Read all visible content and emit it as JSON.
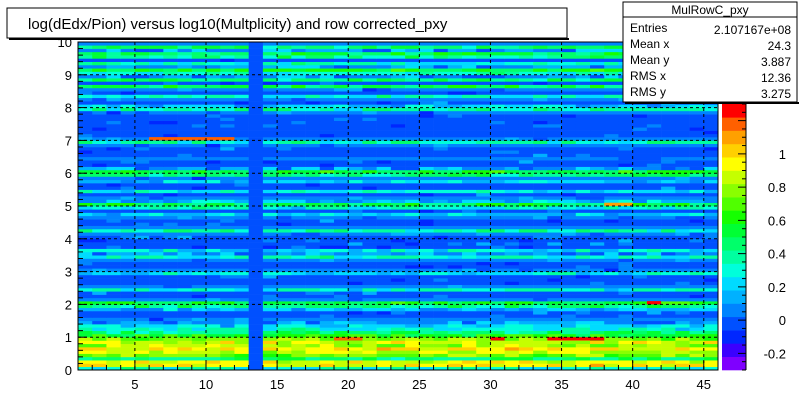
{
  "chart_data": {
    "type": "heatmap",
    "title": "log(dEdx/Pion) versus log10(Multplicity) and row corrected_pxy",
    "xlabel": "",
    "ylabel": "",
    "xlim": [
      1,
      46
    ],
    "ylim": [
      0,
      10
    ],
    "x_ticks": [
      "5",
      "10",
      "15",
      "20",
      "25",
      "30",
      "35",
      "40",
      "45"
    ],
    "y_ticks": [
      "0",
      "1",
      "2",
      "3",
      "4",
      "5",
      "6",
      "7",
      "8",
      "9",
      "10"
    ],
    "grid": true,
    "legend": "none",
    "colorbar": {
      "range": [
        -0.3,
        1.3
      ],
      "ticks": [
        "-0.2",
        "0",
        "0.2",
        "0.4",
        "0.6",
        "0.8",
        "1"
      ]
    },
    "stats": {
      "name": "MulRowC_pxy",
      "rows": [
        {
          "label": "Entries",
          "value": "2.107167e+08"
        },
        {
          "label": "Mean x",
          "value": "24.3"
        },
        {
          "label": "Mean y",
          "value": "3.887"
        },
        {
          "label": "RMS x",
          "value": "12.36"
        },
        {
          "label": "RMS y",
          "value": "3.275"
        }
      ]
    },
    "palette": [
      "#7f00ff",
      "#3b00ff",
      "#0027ff",
      "#0050ff",
      "#0084ff",
      "#00b1ff",
      "#00dbff",
      "#00ffdb",
      "#00ffa0",
      "#00ff6a",
      "#00ff34",
      "#15ff00",
      "#50ff00",
      "#8aff00",
      "#c5ff00",
      "#ffff00",
      "#ffd000",
      "#ffa000",
      "#ff6000",
      "#ff0000"
    ],
    "row_profile": {
      "y_start": 0,
      "y_end": 10,
      "bins": 100,
      "description": "mean value per y-bin; cells vary around these",
      "values": [
        0.3,
        0.95,
        0.9,
        0.45,
        0.75,
        0.85,
        0.95,
        0.8,
        0.9,
        0.75,
        0.6,
        0.45,
        0.3,
        0.2,
        0.1,
        0.05,
        0.02,
        0.0,
        0.15,
        0.4,
        0.55,
        0.05,
        0.0,
        0.02,
        0.3,
        0.05,
        0.0,
        0.0,
        0.02,
        0.25,
        0.05,
        0.0,
        0.0,
        0.05,
        0.3,
        0.1,
        0.25,
        0.0,
        0.02,
        0.0,
        0.0,
        0.05,
        0.35,
        0.05,
        0.0,
        0.0,
        0.05,
        0.2,
        0.0,
        0.3,
        0.5,
        0.15,
        0.05,
        0.0,
        0.25,
        0.0,
        0.0,
        0.2,
        0.05,
        0.4,
        0.55,
        0.1,
        0.0,
        0.0,
        0.05,
        0.0,
        0.0,
        0.0,
        0.05,
        0.35,
        0.05,
        0.0,
        0.0,
        0.0,
        0.0,
        0.0,
        0.0,
        0.0,
        0.05,
        0.35,
        0.2,
        0.0,
        0.05,
        0.3,
        0.0,
        0.05,
        0.5,
        0.0,
        0.45,
        0.1,
        0.3,
        0.55,
        0.1,
        0.3,
        0.0,
        0.4,
        0.5,
        0.1,
        0.45,
        0.05
      ]
    },
    "empty_column_x": 13.5,
    "hotspots": [
      {
        "x": [
          34,
          38
        ],
        "y": [
          0.9,
          1.0
        ],
        "value": 1.3
      },
      {
        "x": [
          30,
          31
        ],
        "y": [
          0.9,
          1.0
        ],
        "value": 1.25
      },
      {
        "x": [
          19,
          21
        ],
        "y": [
          0.9,
          1.0
        ],
        "value": 1.15
      },
      {
        "x": [
          6,
          12
        ],
        "y": [
          7.0,
          7.1
        ],
        "value": 1.2
      },
      {
        "x": [
          38,
          40
        ],
        "y": [
          5.0,
          5.1
        ],
        "value": 1.1
      },
      {
        "x": [
          41,
          42
        ],
        "y": [
          2.0,
          2.1
        ],
        "value": 1.3
      }
    ]
  }
}
